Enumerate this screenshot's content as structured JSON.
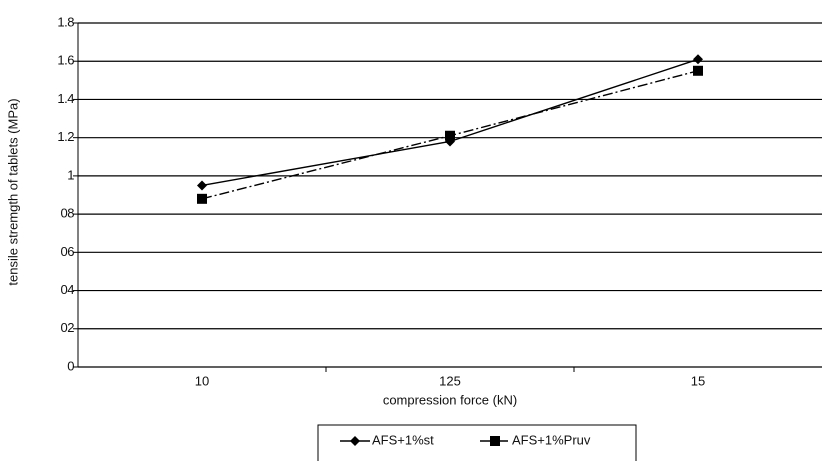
{
  "chart_data": {
    "type": "line",
    "y_label": "tensile stremgth of tablets (MPa)",
    "x_label": "compression force (kN)",
    "categories": [
      "10",
      "125",
      "15"
    ],
    "series": [
      {
        "name": "AFS+1%st",
        "color": "#000000",
        "marker": "diamond",
        "dash": "solid",
        "values": [
          0.95,
          1.18,
          1.61
        ]
      },
      {
        "name": "AFS+1%Pruv",
        "color": "#000000",
        "marker": "square",
        "dash": "dashdot",
        "values": [
          0.88,
          1.21,
          1.55
        ]
      }
    ],
    "ylim": [
      0,
      1.8
    ],
    "yticks": [
      0,
      {
        "value": 0.2,
        "label": "02"
      },
      {
        "value": 0.4,
        "label": "04"
      },
      {
        "value": 0.6,
        "label": "06"
      },
      {
        "value": 0.8,
        "label": "08"
      },
      1,
      1.2,
      1.4,
      1.6,
      1.8
    ],
    "grid": true,
    "legend": "bottom"
  }
}
